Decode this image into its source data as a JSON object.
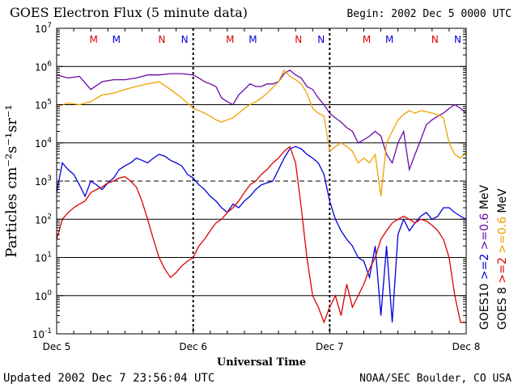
{
  "header": {
    "title": "GOES Electron Flux (5 minute data)",
    "begin": "Begin: 2002 Dec 5 0000 UTC"
  },
  "footer": {
    "updated": "Updated 2002 Dec  7 23:56:04 UTC",
    "credit": "NOAA/SEC Boulder, CO USA"
  },
  "chart_data": {
    "type": "line",
    "title": "GOES Electron Flux (5 minute data)",
    "xlabel": "Universal Time",
    "ylabel": "Particles cm⁻²s⁻¹sr⁻¹",
    "yscale": "log",
    "ylim": [
      0.1,
      10000000
    ],
    "xlim": [
      0,
      72
    ],
    "x_unit": "hours since 2002 Dec 5 0000 UTC",
    "x_ticks": [
      {
        "x": 0,
        "label": "Dec 5"
      },
      {
        "x": 24,
        "label": "Dec 6"
      },
      {
        "x": 48,
        "label": "Dec 7"
      },
      {
        "x": 72,
        "label": "Dec 8"
      }
    ],
    "y_ticks": [
      {
        "exp": "7"
      },
      {
        "exp": "6"
      },
      {
        "exp": "5"
      },
      {
        "exp": "4"
      },
      {
        "exp": "3"
      },
      {
        "exp": "2"
      },
      {
        "exp": "1"
      },
      {
        "exp": "0"
      },
      {
        "exp": "-1"
      }
    ],
    "grid": true,
    "dashed_grid_at": [
      1000
    ],
    "day_markers": [
      {
        "day": 0,
        "labels": [
          {
            "x": 6.5,
            "text": "M",
            "color": "#dd0000"
          },
          {
            "x": 10.5,
            "text": "M",
            "color": "#0000dd"
          },
          {
            "x": 18.5,
            "text": "N",
            "color": "#dd0000"
          },
          {
            "x": 22.5,
            "text": "N",
            "color": "#0000dd"
          }
        ]
      },
      {
        "day": 1,
        "labels": [
          {
            "x": 30.5,
            "text": "M",
            "color": "#dd0000"
          },
          {
            "x": 34.5,
            "text": "M",
            "color": "#0000dd"
          },
          {
            "x": 42.5,
            "text": "N",
            "color": "#dd0000"
          },
          {
            "x": 46.5,
            "text": "N",
            "color": "#0000dd"
          }
        ]
      },
      {
        "day": 2,
        "labels": [
          {
            "x": 54.5,
            "text": "M",
            "color": "#dd0000"
          },
          {
            "x": 58.5,
            "text": "M",
            "color": "#0000dd"
          },
          {
            "x": 66.5,
            "text": "N",
            "color": "#dd0000"
          },
          {
            "x": 70.5,
            "text": "N",
            "color": "#0000dd"
          }
        ]
      }
    ],
    "legend": {
      "placement": "right, vertical",
      "entries": [
        {
          "text": "GOES10",
          "color": "#000000"
        },
        {
          "text": ">=2",
          "color": "#0000dd"
        },
        {
          "text": ">=0.6",
          "color": "#6a0aa8"
        },
        {
          "text": "MeV",
          "color": "#000000"
        },
        {
          "text": "GOES 8",
          "color": "#000000"
        },
        {
          "text": ">=2",
          "color": "#dd0000"
        },
        {
          "text": ">=0.6",
          "color": "#f0a000"
        },
        {
          "text": "MeV",
          "color": "#000000"
        }
      ]
    },
    "series": [
      {
        "name": "GOES10 >=0.6 MeV",
        "color": "#6a0aa8",
        "x": [
          0,
          2,
          4,
          6,
          8,
          10,
          12,
          14,
          16,
          18,
          20,
          22,
          24,
          25,
          26,
          27,
          28,
          29,
          30,
          31,
          32,
          33,
          34,
          35,
          36,
          37,
          38,
          39,
          40,
          41,
          42,
          43,
          44,
          45,
          46,
          47,
          48,
          49,
          50,
          51,
          52,
          53,
          54,
          55,
          56,
          57,
          58,
          59,
          60,
          61,
          62,
          63,
          64,
          65,
          66,
          67,
          68,
          69,
          70,
          71,
          72
        ],
        "y": [
          600000,
          500000,
          550000,
          250000,
          400000,
          450000,
          450000,
          500000,
          600000,
          600000,
          650000,
          650000,
          600000,
          500000,
          400000,
          350000,
          300000,
          150000,
          120000,
          100000,
          180000,
          250000,
          350000,
          300000,
          300000,
          350000,
          350000,
          400000,
          650000,
          800000,
          600000,
          500000,
          300000,
          250000,
          150000,
          100000,
          60000,
          45000,
          35000,
          25000,
          20000,
          10000,
          12000,
          15000,
          20000,
          15000,
          5000,
          3000,
          10000,
          20000,
          2000,
          5000,
          12000,
          30000,
          40000,
          50000,
          60000,
          80000,
          100000,
          80000,
          60000
        ]
      },
      {
        "name": "GOES 8 >=0.6 MeV",
        "color": "#f0a000",
        "x": [
          0,
          2,
          4,
          6,
          8,
          10,
          12,
          14,
          16,
          18,
          20,
          22,
          24,
          25,
          26,
          27,
          28,
          29,
          30,
          31,
          32,
          33,
          34,
          35,
          36,
          37,
          38,
          39,
          40,
          41,
          42,
          43,
          44,
          45,
          46,
          47,
          48,
          49,
          50,
          51,
          52,
          53,
          54,
          55,
          56,
          57,
          58,
          59,
          60,
          61,
          62,
          63,
          64,
          65,
          66,
          67,
          68,
          69,
          70,
          71,
          72
        ],
        "y": [
          90000,
          110000,
          100000,
          120000,
          180000,
          200000,
          250000,
          300000,
          350000,
          400000,
          250000,
          150000,
          80000,
          70000,
          60000,
          50000,
          40000,
          35000,
          40000,
          45000,
          60000,
          80000,
          100000,
          120000,
          150000,
          200000,
          280000,
          400000,
          800000,
          550000,
          450000,
          350000,
          200000,
          80000,
          60000,
          50000,
          6000,
          8000,
          10000,
          8000,
          6000,
          3000,
          4000,
          3000,
          5000,
          400,
          10000,
          20000,
          40000,
          55000,
          70000,
          60000,
          70000,
          65000,
          60000,
          55000,
          45000,
          10000,
          5000,
          4000,
          6000
        ]
      },
      {
        "name": "GOES10 >=2 MeV",
        "color": "#0000dd",
        "x": [
          0,
          1,
          2,
          3,
          4,
          5,
          6,
          7,
          8,
          9,
          10,
          11,
          12,
          13,
          14,
          15,
          16,
          17,
          18,
          19,
          20,
          21,
          22,
          23,
          24,
          25,
          26,
          27,
          28,
          29,
          30,
          31,
          32,
          33,
          34,
          35,
          36,
          37,
          38,
          39,
          40,
          41,
          42,
          43,
          44,
          45,
          46,
          47,
          48,
          49,
          50,
          51,
          52,
          53,
          54,
          55,
          56,
          57,
          58,
          59,
          60,
          61,
          62,
          63,
          64,
          65,
          66,
          67,
          68,
          69,
          70,
          71,
          72
        ],
        "y": [
          500,
          3000,
          2000,
          1500,
          800,
          400,
          1000,
          800,
          600,
          900,
          1200,
          2000,
          2500,
          3000,
          4000,
          3500,
          3000,
          4000,
          5000,
          4500,
          3500,
          3000,
          2500,
          1500,
          1200,
          800,
          600,
          400,
          300,
          200,
          150,
          250,
          200,
          300,
          400,
          600,
          800,
          900,
          1000,
          2000,
          4000,
          7000,
          8000,
          7000,
          5000,
          4000,
          3000,
          1500,
          300,
          100,
          50,
          30,
          20,
          10,
          8,
          3,
          20,
          0.3,
          20,
          0.2,
          40,
          100,
          50,
          80,
          120,
          150,
          100,
          120,
          200,
          200,
          150,
          120,
          100
        ]
      },
      {
        "name": "GOES 8 >=2 MeV",
        "color": "#dd0000",
        "x": [
          0,
          1,
          2,
          3,
          4,
          5,
          6,
          7,
          8,
          9,
          10,
          11,
          12,
          13,
          14,
          15,
          16,
          17,
          18,
          19,
          20,
          21,
          22,
          23,
          24,
          25,
          26,
          27,
          28,
          29,
          30,
          31,
          32,
          33,
          34,
          35,
          36,
          37,
          38,
          39,
          40,
          41,
          42,
          43,
          44,
          45,
          46,
          47,
          48,
          49,
          50,
          51,
          52,
          53,
          54,
          55,
          56,
          57,
          58,
          59,
          60,
          61,
          62,
          63,
          64,
          65,
          66,
          67,
          68,
          69,
          70,
          71,
          72
        ],
        "y": [
          30,
          100,
          150,
          200,
          250,
          300,
          500,
          600,
          700,
          900,
          1000,
          1200,
          1300,
          1000,
          700,
          300,
          100,
          30,
          10,
          5,
          3,
          4,
          6,
          8,
          10,
          20,
          30,
          50,
          80,
          100,
          150,
          200,
          300,
          500,
          800,
          1000,
          1500,
          2000,
          3000,
          4000,
          6000,
          8000,
          3000,
          200,
          10,
          1,
          0.5,
          0.2,
          0.5,
          1,
          0.3,
          2,
          0.5,
          1,
          2,
          5,
          10,
          30,
          50,
          80,
          100,
          120,
          100,
          80,
          100,
          90,
          70,
          50,
          30,
          10,
          1,
          0.2,
          0.2
        ]
      }
    ]
  }
}
